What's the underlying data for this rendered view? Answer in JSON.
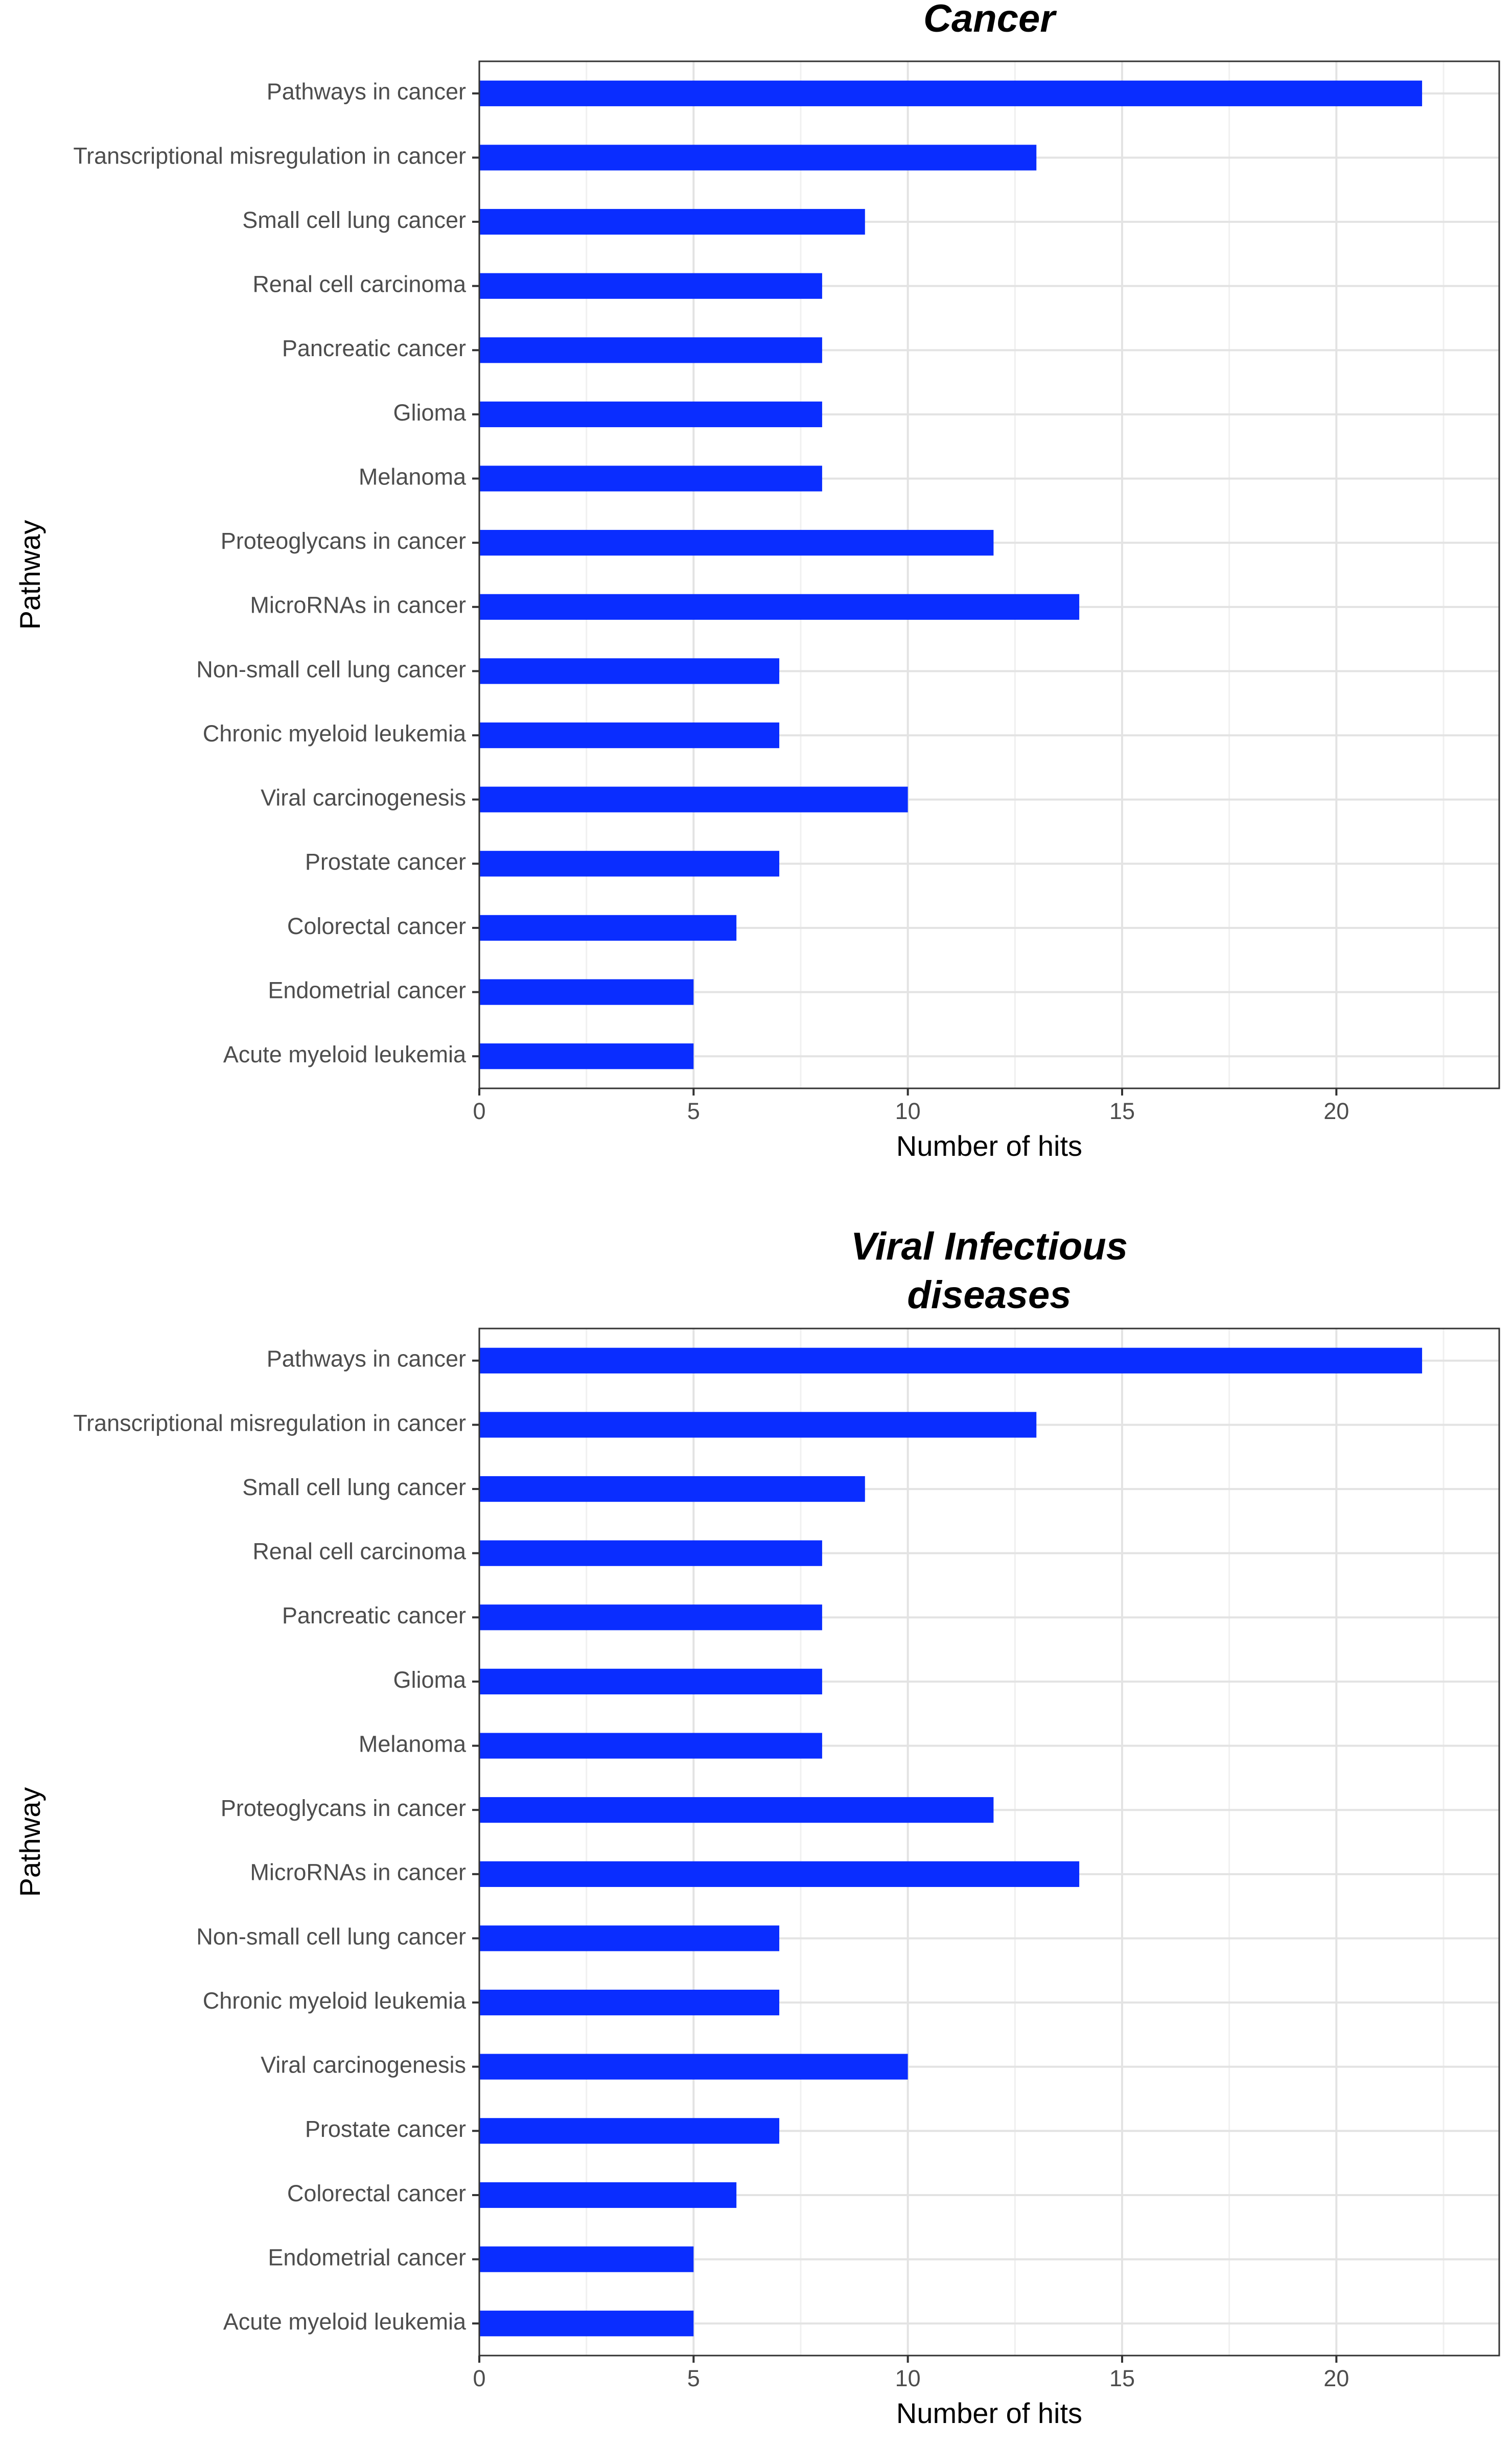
{
  "chart_data": [
    {
      "type": "bar",
      "orientation": "horizontal",
      "title": "Cancer",
      "xlabel": "Number of hits",
      "ylabel": "Pathway",
      "xlim": [
        0,
        23.8
      ],
      "xticks": [
        0,
        5,
        10,
        15,
        20
      ],
      "grid": true,
      "bar_color": "#0a2dff",
      "categories": [
        "Pathways in cancer",
        "Transcriptional misregulation in cancer",
        "Small cell lung cancer",
        "Renal cell carcinoma",
        "Pancreatic cancer",
        "Glioma",
        "Melanoma",
        "Proteoglycans in cancer",
        "MicroRNAs in cancer",
        "Non-small cell lung cancer",
        "Chronic myeloid leukemia",
        "Viral carcinogenesis",
        "Prostate cancer",
        "Colorectal cancer",
        "Endometrial cancer",
        "Acute myeloid leukemia"
      ],
      "values": [
        22,
        13,
        9,
        8,
        8,
        8,
        8,
        12,
        14,
        7,
        7,
        10,
        7,
        6,
        5,
        5
      ]
    },
    {
      "type": "bar",
      "orientation": "horizontal",
      "title": "Viral Infectious\ndiseases",
      "xlabel": "Number of hits",
      "ylabel": "Pathway",
      "xlim": [
        0,
        23.8
      ],
      "xticks": [
        0,
        5,
        10,
        15,
        20
      ],
      "grid": true,
      "bar_color": "#0a2dff",
      "categories": [
        "Pathways in cancer",
        "Transcriptional misregulation in cancer",
        "Small cell lung cancer",
        "Renal cell carcinoma",
        "Pancreatic cancer",
        "Glioma",
        "Melanoma",
        "Proteoglycans in cancer",
        "MicroRNAs in cancer",
        "Non-small cell lung cancer",
        "Chronic myeloid leukemia",
        "Viral carcinogenesis",
        "Prostate cancer",
        "Colorectal cancer",
        "Endometrial cancer",
        "Acute myeloid leukemia"
      ],
      "values": [
        22,
        13,
        9,
        8,
        8,
        8,
        8,
        12,
        14,
        7,
        7,
        10,
        7,
        6,
        5,
        5
      ]
    }
  ]
}
